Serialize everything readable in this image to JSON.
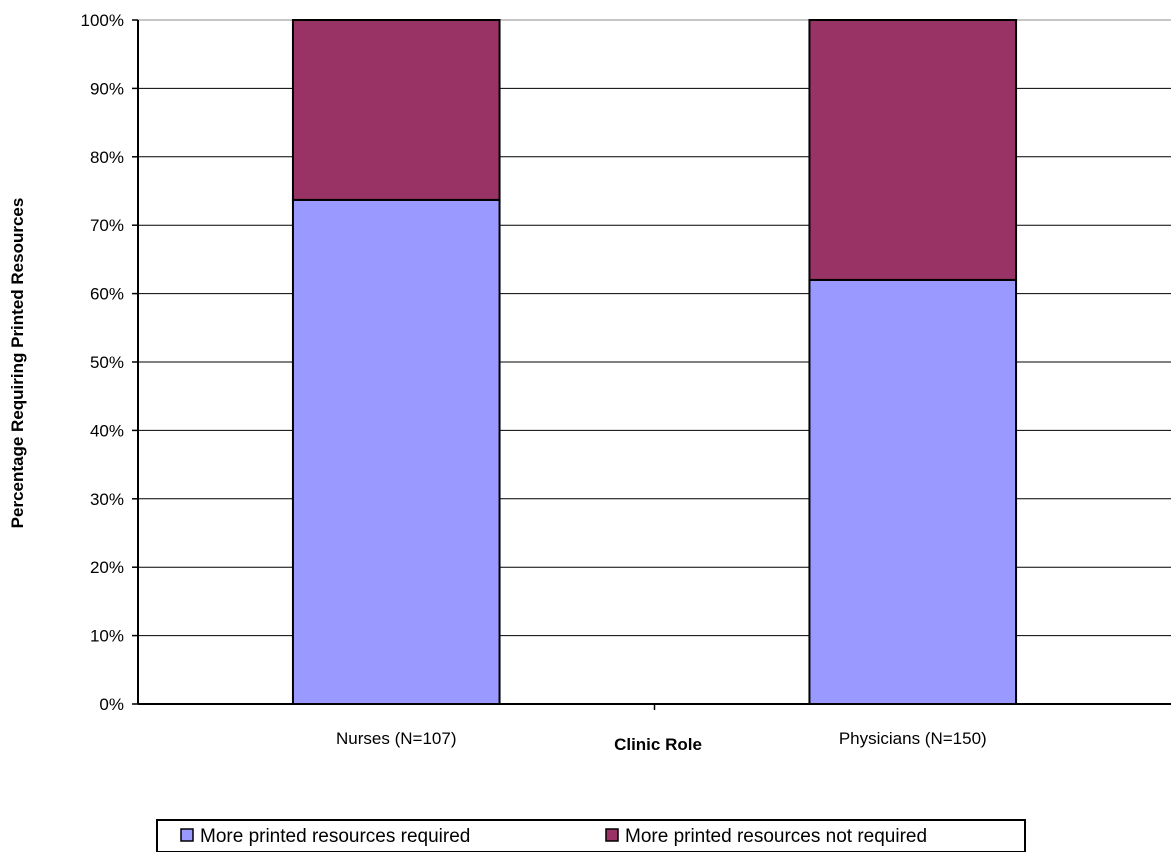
{
  "chart_data": {
    "type": "bar",
    "stacked": true,
    "normalized": true,
    "categories": [
      "Nurses (N=107)",
      "Physicians (N=150)"
    ],
    "series": [
      {
        "name": "More printed resources required",
        "values": [
          73.7,
          62.0
        ],
        "color": "#9999ff"
      },
      {
        "name": "More printed resources not required",
        "values": [
          26.3,
          38.0
        ],
        "color": "#993366"
      }
    ],
    "title": "",
    "xlabel": "Clinic Role",
    "ylabel": "Percentage Requiring Printed Resources",
    "ylim": [
      0,
      100
    ],
    "yticks": [
      0,
      10,
      20,
      30,
      40,
      50,
      60,
      70,
      80,
      90,
      100
    ],
    "ytick_suffix": "%",
    "grid": true,
    "legend_position": "bottom"
  }
}
